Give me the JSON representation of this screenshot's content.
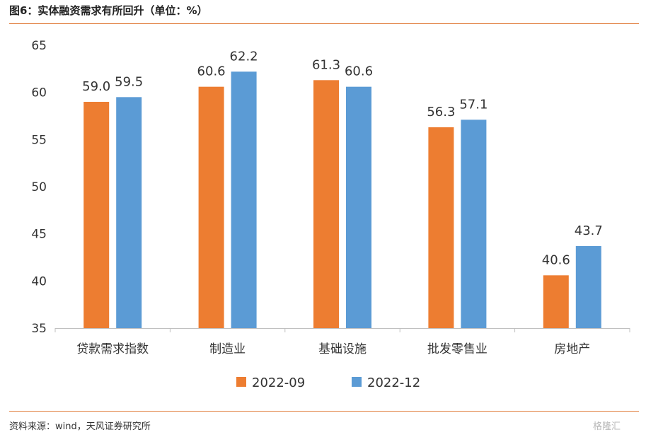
{
  "header": {
    "title": "图6：实体融资需求有所回升（单位：%）"
  },
  "footer": {
    "source": "资料来源：wind，天风证券研究所",
    "watermark": "格隆汇"
  },
  "colors": {
    "series_1": "#ed7d31",
    "series_2": "#5b9bd5",
    "rule": "#e07b39",
    "axis": "#bfbfbf"
  },
  "chart_data": {
    "type": "bar",
    "title": "",
    "xlabel": "",
    "ylabel": "",
    "ylim": [
      35,
      65
    ],
    "yticks": [
      35,
      40,
      45,
      50,
      55,
      60,
      65
    ],
    "categories": [
      "贷款需求指数",
      "制造业",
      "基础设施",
      "批发零售业",
      "房地产"
    ],
    "series": [
      {
        "name": "2022-09",
        "values": [
          59.0,
          60.6,
          61.3,
          56.3,
          40.6
        ],
        "labels": [
          "59.0",
          "60.6",
          "61.3",
          "56.3",
          "40.6"
        ]
      },
      {
        "name": "2022-12",
        "values": [
          59.5,
          62.2,
          60.6,
          57.1,
          43.7
        ],
        "labels": [
          "59.5",
          "62.2",
          "60.6",
          "57.1",
          "43.7"
        ]
      }
    ],
    "grid": false,
    "data_labels": true,
    "legend": "bottom-center"
  }
}
